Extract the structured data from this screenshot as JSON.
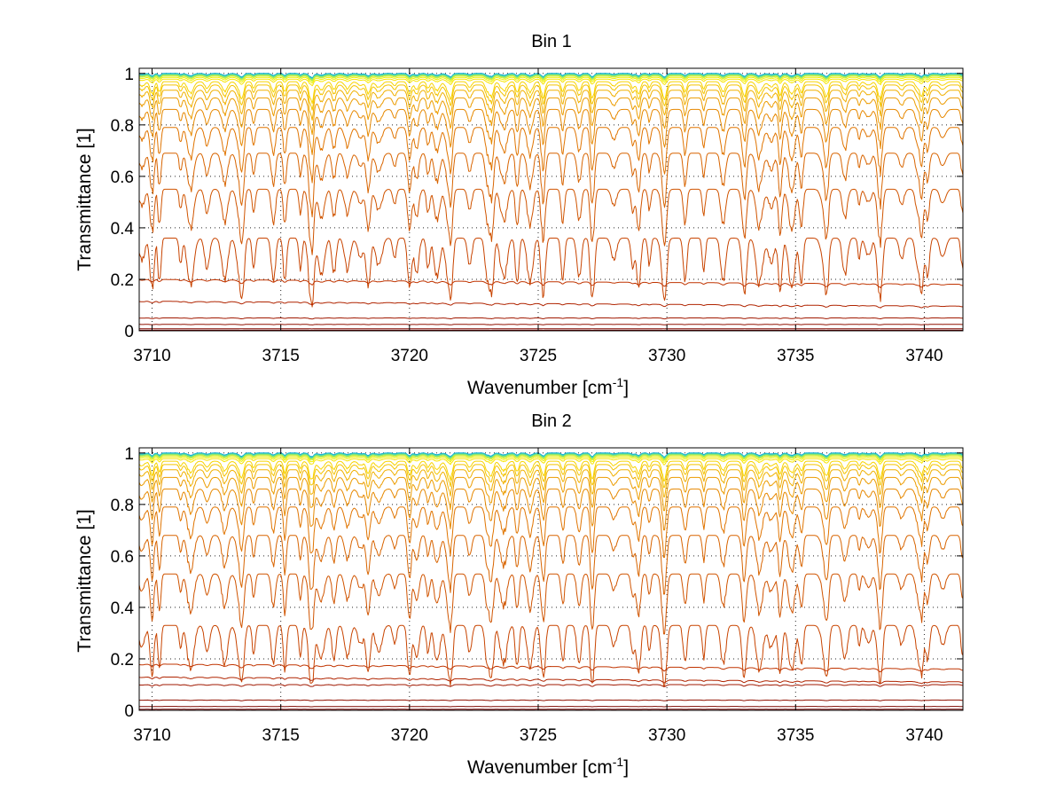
{
  "chart_data": [
    {
      "type": "line",
      "title": "Bin 1",
      "xlabel": "Wavenumber [cm",
      "xlabel_sup": "-1",
      "xlabel_end": "]",
      "ylabel": "Transmittance [1]",
      "xlim": [
        3709.5,
        3741.5
      ],
      "ylim": [
        0,
        1.02
      ],
      "xticks": [
        3710,
        3715,
        3720,
        3725,
        3730,
        3735,
        3740
      ],
      "yticks": [
        0,
        0.2,
        0.4,
        0.6,
        0.8,
        1
      ],
      "ytick_labels": [
        "0",
        "0.2",
        "0.4",
        "0.6",
        "0.8",
        "1"
      ],
      "grid": true,
      "line_baselines": [
        1.0,
        0.999,
        0.998,
        0.997,
        0.995,
        0.993,
        0.99,
        0.985,
        0.978,
        0.968,
        0.955,
        0.935,
        0.905,
        0.86,
        0.79,
        0.69,
        0.55,
        0.36,
        0.2,
        0.115,
        0.05,
        0.025,
        0.008,
        0.002
      ],
      "line_colors": [
        "#00a0e0",
        "#10b0d8",
        "#20c0c8",
        "#40d0b0",
        "#70e090",
        "#a0e860",
        "#d0f030",
        "#f0f000",
        "#f8e400",
        "#f8d400",
        "#f4c400",
        "#f0b000",
        "#ec9c00",
        "#e68800",
        "#e07400",
        "#d86400",
        "#d05400",
        "#c84400",
        "#c03400",
        "#b02400",
        "#a01800",
        "#901000",
        "#800800",
        "#700000"
      ]
    },
    {
      "type": "line",
      "title": "Bin 2",
      "xlabel": "Wavenumber [cm",
      "xlabel_sup": "-1",
      "xlabel_end": "]",
      "ylabel": "Transmittance [1]",
      "xlim": [
        3709.5,
        3741.5
      ],
      "ylim": [
        0,
        1.02
      ],
      "xticks": [
        3710,
        3715,
        3720,
        3725,
        3730,
        3735,
        3740
      ],
      "yticks": [
        0,
        0.2,
        0.4,
        0.6,
        0.8,
        1
      ],
      "ytick_labels": [
        "0",
        "0.2",
        "0.4",
        "0.6",
        "0.8",
        "1"
      ],
      "grid": true,
      "line_baselines": [
        1.0,
        0.999,
        0.998,
        0.997,
        0.995,
        0.993,
        0.99,
        0.985,
        0.978,
        0.968,
        0.955,
        0.935,
        0.905,
        0.86,
        0.79,
        0.68,
        0.53,
        0.33,
        0.18,
        0.13,
        0.1,
        0.04,
        0.015,
        0.004
      ],
      "line_colors": [
        "#00a0e0",
        "#10b0d8",
        "#20c0c8",
        "#40d0b0",
        "#70e090",
        "#a0e860",
        "#d0f030",
        "#f0f000",
        "#f8e400",
        "#f8d400",
        "#f4c400",
        "#f0b000",
        "#ec9c00",
        "#e68800",
        "#e07400",
        "#d86400",
        "#d05400",
        "#c84400",
        "#c03400",
        "#b02400",
        "#a01800",
        "#901000",
        "#800800",
        "#700000"
      ]
    }
  ]
}
